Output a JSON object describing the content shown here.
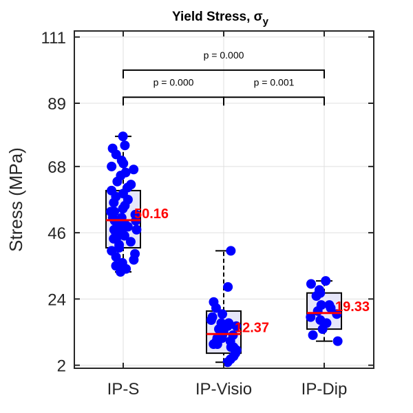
{
  "chart_data": {
    "type": "boxplot",
    "title": "Yield Stress, σ",
    "title_subscript": "y",
    "ylabel": "Stress (MPa)",
    "ylim": [
      1,
      113
    ],
    "yticks": [
      2,
      24,
      46,
      68,
      89,
      111
    ],
    "grid": true,
    "categories": [
      "IP-S",
      "IP-Visio",
      "IP-Dip"
    ],
    "colors": {
      "box_fill": "#e6e6fa",
      "median": "#ff0000",
      "points": "#0000ff",
      "median_label": "#ff0000",
      "grid": "#dfdfdf",
      "axes": "#262626"
    },
    "boxes": [
      {
        "category": "IP-S",
        "q1": 41,
        "median": 50.16,
        "q3": 60,
        "whisker_low": 33,
        "whisker_high": 78,
        "median_label": "50.16"
      },
      {
        "category": "IP-Visio",
        "q1": 6,
        "median": 12.37,
        "q3": 20,
        "whisker_low": 3,
        "whisker_high": 40,
        "median_label": "12.37"
      },
      {
        "category": "IP-Dip",
        "q1": 14,
        "median": 19.33,
        "q3": 26,
        "whisker_low": 10,
        "whisker_high": 30,
        "median_label": "19.33"
      }
    ],
    "points": [
      [
        78,
        75,
        74,
        72,
        70,
        69,
        68,
        67,
        66,
        65,
        63,
        62,
        61,
        60,
        59,
        58,
        57,
        56,
        55,
        54,
        53,
        53,
        52,
        52,
        51,
        51,
        50,
        50,
        49,
        49,
        48,
        48,
        47,
        47,
        46,
        46,
        45,
        45,
        44,
        43,
        42,
        41,
        40,
        39,
        38,
        37,
        36,
        35,
        34,
        33
      ],
      [
        40,
        28,
        23,
        21,
        19,
        18,
        17,
        16,
        16,
        15,
        15,
        14,
        14,
        13,
        13,
        12,
        12,
        11,
        11,
        10,
        10,
        9,
        9,
        8,
        8,
        7,
        6,
        5,
        4,
        3
      ],
      [
        30,
        29,
        27,
        26,
        25,
        22,
        22,
        21,
        20,
        19,
        18,
        17,
        16,
        14,
        12,
        10
      ]
    ],
    "comparisons": [
      {
        "from": 0,
        "to": 2,
        "y": 100,
        "label": "p = 0.000"
      },
      {
        "from": 0,
        "to": 1,
        "y": 91,
        "label": "p = 0.000"
      },
      {
        "from": 1,
        "to": 2,
        "y": 91,
        "label": "p = 0.001"
      }
    ]
  }
}
